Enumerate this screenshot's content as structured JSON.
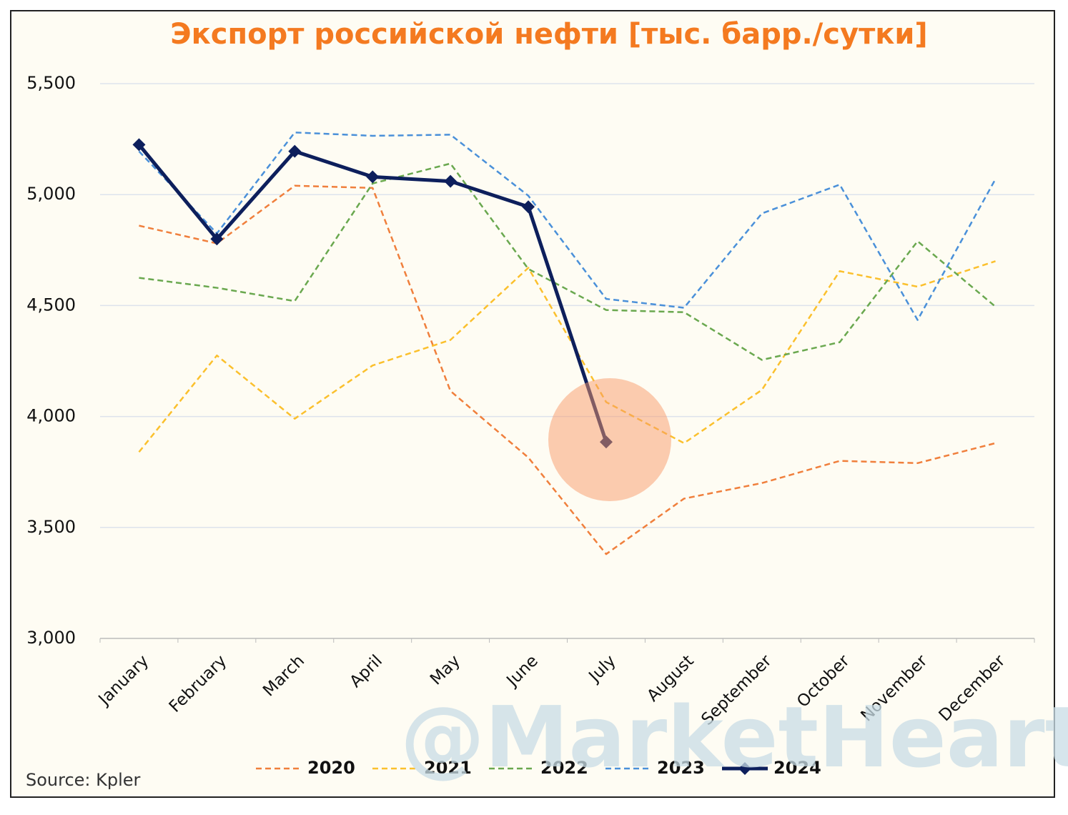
{
  "chart_data": {
    "type": "line",
    "title": "Экспорт российской нефти [тыс. барр./сутки]",
    "source": "Source: Kpler",
    "watermark": "@MarketHeart",
    "categories": [
      "January",
      "February",
      "March",
      "April",
      "May",
      "June",
      "July",
      "August",
      "September",
      "October",
      "November",
      "December"
    ],
    "series": [
      {
        "name": "2020",
        "color": "#f07f3c",
        "style": "dashed",
        "values": [
          4860,
          4780,
          5040,
          5030,
          4115,
          3815,
          3380,
          3630,
          3700,
          3800,
          3790,
          3880
        ]
      },
      {
        "name": "2021",
        "color": "#fbc02d",
        "style": "dashed",
        "values": [
          3840,
          4275,
          3990,
          4230,
          4345,
          4670,
          4065,
          3880,
          4120,
          4655,
          4585,
          4700
        ]
      },
      {
        "name": "2022",
        "color": "#6aa84f",
        "style": "dashed",
        "values": [
          4625,
          4580,
          4520,
          5050,
          5140,
          4665,
          4480,
          4470,
          4255,
          4335,
          4790,
          4495
        ]
      },
      {
        "name": "2023",
        "color": "#4a90d9",
        "style": "dashed",
        "values": [
          5195,
          4825,
          5280,
          5265,
          5270,
          4995,
          4530,
          4490,
          4915,
          5045,
          4435,
          5070
        ]
      },
      {
        "name": "2024",
        "color": "#0d1f5c",
        "style": "solid",
        "marker": "diamond",
        "values": [
          5225,
          4800,
          5195,
          5080,
          5060,
          4945,
          3885,
          null,
          null,
          null,
          null,
          null
        ]
      }
    ],
    "ylim": [
      3000,
      5500
    ],
    "yticks": [
      {
        "value": 3000,
        "label": "3,000"
      },
      {
        "value": 3500,
        "label": "3,500"
      },
      {
        "value": 4000,
        "label": "4,000"
      },
      {
        "value": 4500,
        "label": "4,500"
      },
      {
        "value": 5000,
        "label": "5,000"
      },
      {
        "value": 5500,
        "label": "5,500"
      }
    ],
    "grid": true,
    "legend": "bottom"
  }
}
